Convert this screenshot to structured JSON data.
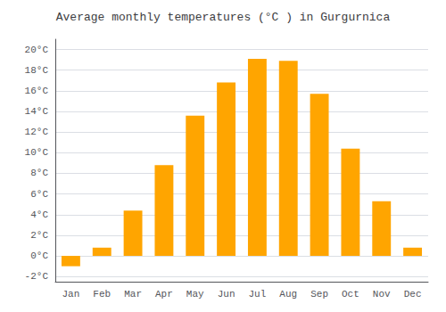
{
  "chart_data": {
    "type": "bar",
    "title": "Average monthly temperatures (°C ) in Gurgurnica",
    "categories": [
      "Jan",
      "Feb",
      "Mar",
      "Apr",
      "May",
      "Jun",
      "Jul",
      "Aug",
      "Sep",
      "Oct",
      "Nov",
      "Dec"
    ],
    "values": [
      -1.0,
      0.8,
      4.4,
      8.8,
      13.6,
      16.8,
      19.1,
      18.9,
      15.7,
      10.4,
      5.3,
      0.8
    ],
    "color": "#FFA500",
    "ylim": [
      -2.5,
      21
    ],
    "yticks": [
      {
        "value": -2,
        "label": "-2°C"
      },
      {
        "value": 0,
        "label": "0°C"
      },
      {
        "value": 2,
        "label": "2°C"
      },
      {
        "value": 4,
        "label": "4°C"
      },
      {
        "value": 6,
        "label": "6°C"
      },
      {
        "value": 8,
        "label": "8°C"
      },
      {
        "value": 10,
        "label": "10°C"
      },
      {
        "value": 12,
        "label": "12°C"
      },
      {
        "value": 14,
        "label": "14°C"
      },
      {
        "value": 16,
        "label": "16°C"
      },
      {
        "value": 18,
        "label": "18°C"
      },
      {
        "value": 20,
        "label": "20°C"
      }
    ],
    "grid": true
  }
}
